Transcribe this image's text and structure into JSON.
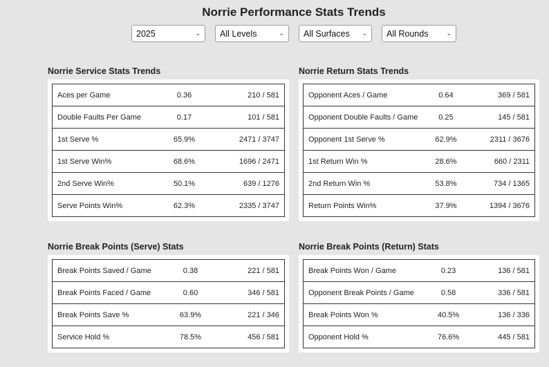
{
  "title": "Norrie Performance Stats Trends",
  "filters": [
    {
      "value": "2025"
    },
    {
      "value": "All Levels"
    },
    {
      "value": "All Surfaces"
    },
    {
      "value": "All Rounds"
    }
  ],
  "service": {
    "title": "Norrie Service Stats Trends",
    "rows": [
      {
        "label": "Aces per Game",
        "value": "0.36",
        "ratio": "210 / 581"
      },
      {
        "label": "Double Faults Per Game",
        "value": "0.17",
        "ratio": "101 / 581"
      },
      {
        "label": "1st Serve %",
        "value": "65.9%",
        "ratio": "2471 / 3747"
      },
      {
        "label": "1st Serve Win%",
        "value": "68.6%",
        "ratio": "1696 / 2471"
      },
      {
        "label": "2nd Serve Win%",
        "value": "50.1%",
        "ratio": "639 / 1276"
      },
      {
        "label": "Serve Points Win%",
        "value": "62.3%",
        "ratio": "2335 / 3747"
      }
    ]
  },
  "return": {
    "title": "Norrie Return Stats Trends",
    "rows": [
      {
        "label": "Opponent Aces / Game",
        "value": "0.64",
        "ratio": "369 / 581"
      },
      {
        "label": "Opponent Double Faults / Game",
        "value": "0.25",
        "ratio": "145 / 581"
      },
      {
        "label": "Opponent 1st Serve %",
        "value": "62.9%",
        "ratio": "2311 / 3676"
      },
      {
        "label": "1st Return Win %",
        "value": "28.6%",
        "ratio": "660 / 2311"
      },
      {
        "label": "2nd Return Win %",
        "value": "53.8%",
        "ratio": "734 / 1365"
      },
      {
        "label": "Return Points Win%",
        "value": "37.9%",
        "ratio": "1394 / 3676"
      }
    ]
  },
  "bp_serve": {
    "title": "Norrie Break Points (Serve) Stats",
    "rows": [
      {
        "label": "Break Points Saved / Game",
        "value": "0.38",
        "ratio": "221 / 581"
      },
      {
        "label": "Break Points Faced / Game",
        "value": "0.60",
        "ratio": "346 / 581"
      },
      {
        "label": "Break Points Save %",
        "value": "63.9%",
        "ratio": "221 / 346"
      },
      {
        "label": "Service Hold %",
        "value": "78.5%",
        "ratio": "456 / 581"
      }
    ]
  },
  "bp_return": {
    "title": "Norrie Break Points (Return) Stats",
    "rows": [
      {
        "label": "Break Points Won / Game",
        "value": "0.23",
        "ratio": "136 / 581"
      },
      {
        "label": "Opponent Break Points / Game",
        "value": "0.58",
        "ratio": "336 / 581"
      },
      {
        "label": "Break Points Won %",
        "value": "40.5%",
        "ratio": "136 / 336"
      },
      {
        "label": "Opponent Hold %",
        "value": "76.6%",
        "ratio": "445 / 581"
      }
    ]
  }
}
